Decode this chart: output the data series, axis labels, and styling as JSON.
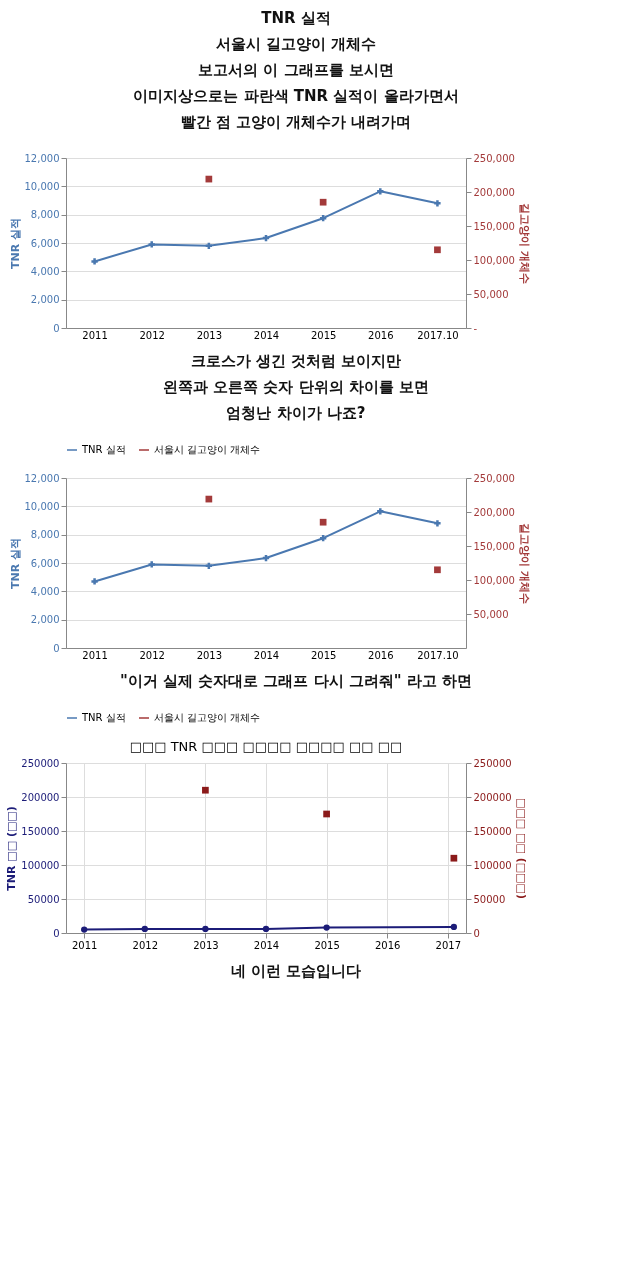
{
  "chart_data": [
    {
      "type": "other",
      "annotations": [
        "TNR 실적",
        "서울시 길고양이 개체수",
        "보고서의 이 그래프를 보시면",
        "이미지상으로는 파란색 TNR 실적이 올라가면서",
        "빨간 점 고양이 개체수가 내려가며"
      ]
    },
    {
      "type": "line",
      "categories": [
        "2011",
        "2012",
        "2013",
        "2014",
        "2015",
        "2016",
        "2017.10"
      ],
      "ylabel": "TNR 실적",
      "y2label": "길고양이 개체수",
      "series": [
        {
          "name": "TNR 실적",
          "color": "#4a78b0",
          "type": "line",
          "marker": "cross",
          "values": [
            4700,
            5900,
            5800,
            6350,
            7750,
            9650,
            8800
          ]
        },
        {
          "name": "서울시 길고양이 개체수",
          "color": "#a33a3a",
          "type": "scatter",
          "marker": "square",
          "axis": "y2",
          "values": [
            null,
            null,
            219000,
            null,
            185000,
            null,
            115000
          ]
        }
      ],
      "ylim": [
        0,
        12000
      ],
      "yticks": [
        {
          "value": 0,
          "label": "0"
        },
        {
          "value": 2000,
          "label": "2,000"
        },
        {
          "value": 4000,
          "label": "4,000"
        },
        {
          "value": 6000,
          "label": "6,000"
        },
        {
          "value": 8000,
          "label": "8,000"
        },
        {
          "value": 10000,
          "label": "10,000"
        },
        {
          "value": 12000,
          "label": "12,000"
        }
      ],
      "y2lim": [
        0,
        250000
      ],
      "y2ticks": [
        {
          "value": 0,
          "label": "-"
        },
        {
          "value": 50000,
          "label": "50,000"
        },
        {
          "value": 100000,
          "label": "100,000"
        },
        {
          "value": 150000,
          "label": "150,000"
        },
        {
          "value": 200000,
          "label": "200,000"
        },
        {
          "value": 250000,
          "label": "250,000"
        }
      ],
      "grid": "y",
      "legend": "bottom",
      "annotations": [
        "크로스가 생긴 것처럼 보이지만",
        "왼쪽과 오른쪽 숫자 단위의 차이를 보면",
        "엄청난 차이가 나죠?"
      ]
    },
    {
      "type": "line",
      "categories": [
        "2011",
        "2012",
        "2013",
        "2014",
        "2015",
        "2016",
        "2017.10"
      ],
      "ylabel": "TNR 실적",
      "y2label": "길고양이 개체수",
      "series": [
        {
          "name": "TNR 실적",
          "color": "#4a78b0",
          "type": "line",
          "marker": "cross",
          "values": [
            4700,
            5900,
            5800,
            6350,
            7750,
            9650,
            8800
          ]
        },
        {
          "name": "서울시 길고양이 개체수",
          "color": "#a33a3a",
          "type": "scatter",
          "marker": "square",
          "axis": "y2",
          "values": [
            null,
            null,
            219000,
            null,
            185000,
            null,
            115000
          ]
        }
      ],
      "ylim": [
        0,
        12000
      ],
      "yticks": [
        {
          "value": 0,
          "label": "0"
        },
        {
          "value": 2000,
          "label": "2,000"
        },
        {
          "value": 4000,
          "label": "4,000"
        },
        {
          "value": 6000,
          "label": "6,000"
        },
        {
          "value": 8000,
          "label": "8,000"
        },
        {
          "value": 10000,
          "label": "10,000"
        },
        {
          "value": 12000,
          "label": "12,000"
        }
      ],
      "y2lim": [
        0,
        250000
      ],
      "y2ticks": [
        {
          "value": 50000,
          "label": "50,000"
        },
        {
          "value": 100000,
          "label": "100,000"
        },
        {
          "value": 150000,
          "label": "150,000"
        },
        {
          "value": 200000,
          "label": "200,000"
        },
        {
          "value": 250000,
          "label": "250,000"
        }
      ],
      "grid": "y",
      "legend": "bottom",
      "annotations": [
        "\"이거 실제 숫자대로 그래프 다시 그려줘\" 라고 하면"
      ]
    },
    {
      "type": "line",
      "title": "□□□ TNR □□□ □□□□ □□□□ □□ □□",
      "ylabel": "TNR □□ (□□)",
      "y2label": "□□□ □□ (□□□)",
      "series": [
        {
          "color": "#1c1c78",
          "type": "line",
          "marker": "circle",
          "x": [
            2011,
            2012,
            2013,
            2014,
            2015,
            2017.1
          ],
          "values": [
            5000,
            6000,
            6000,
            6000,
            8000,
            9000
          ]
        },
        {
          "color": "#8b1a1a",
          "type": "scatter",
          "marker": "square",
          "axis": "y2",
          "x": [
            2013,
            2015,
            2017.1
          ],
          "values": [
            210000,
            175000,
            110000
          ]
        }
      ],
      "xlim": [
        2010.7,
        2017.3
      ],
      "xticks": [
        2011,
        2012,
        2013,
        2014,
        2015,
        2016,
        2017
      ],
      "ylim": [
        0,
        250000
      ],
      "yticks": [
        0,
        50000,
        100000,
        150000,
        200000,
        250000
      ],
      "y2lim": [
        0,
        250000
      ],
      "y2ticks": [
        0,
        50000,
        100000,
        150000,
        200000,
        250000
      ],
      "grid": true,
      "annotations": [
        "네 이런 모습입니다"
      ]
    }
  ]
}
